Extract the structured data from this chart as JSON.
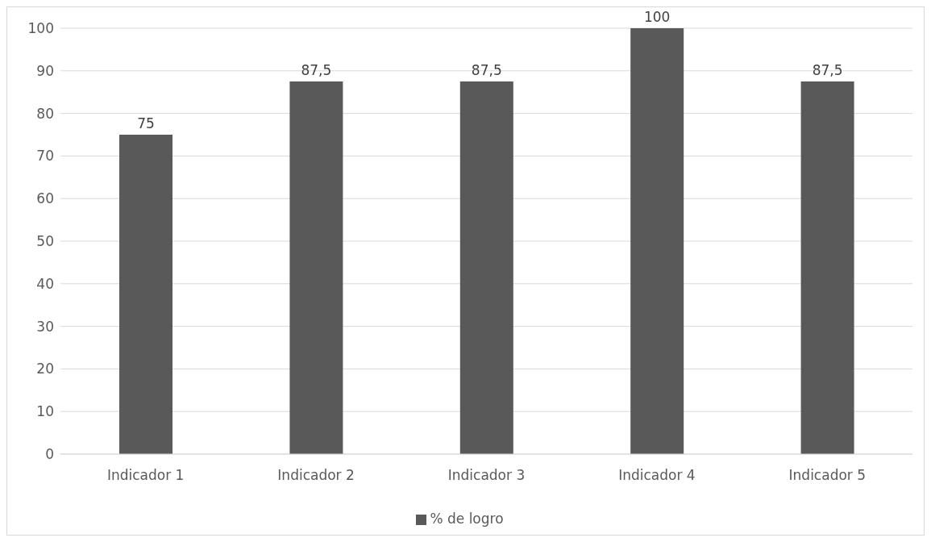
{
  "chart_data": {
    "type": "bar",
    "categories": [
      "Indicador 1",
      "Indicador 2",
      "Indicador 3",
      "Indicador 4",
      "Indicador 5"
    ],
    "series": [
      {
        "name": "% de logro",
        "color": "#595959",
        "values": [
          75,
          87.5,
          87.5,
          100,
          87.5
        ],
        "value_labels": [
          "75",
          "87,5",
          "87,5",
          "100",
          "87,5"
        ]
      }
    ],
    "ylim": [
      0,
      100
    ],
    "yticks": [
      0,
      10,
      20,
      30,
      40,
      50,
      60,
      70,
      80,
      90,
      100
    ],
    "grid": "y",
    "legend": "bottom"
  }
}
